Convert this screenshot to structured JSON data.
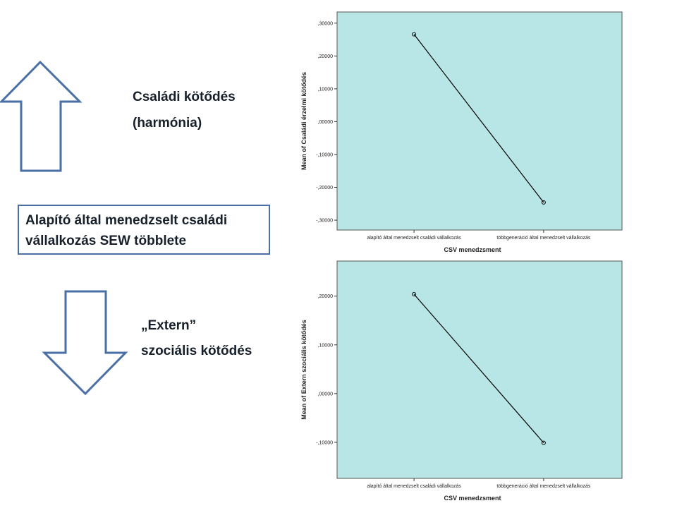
{
  "slide": {
    "top_label": [
      "Családi kötődés",
      "(harmónia)"
    ],
    "box_text": [
      "Alapító által menedzselt családi",
      "vállalkozás SEW többlete"
    ],
    "bottom_label": [
      "„Extern”",
      "szociális kötődés"
    ]
  },
  "chart_data": [
    {
      "type": "line",
      "x_label": "CSV menedzsment",
      "y_label": "Mean of Családi érzelmi kötődés",
      "categories": [
        "alapító által menedzselt családi vállalkozás",
        "többgeneráció által menedzselt vállalkozás"
      ],
      "values": [
        0.266,
        -0.246
      ],
      "color": "#000000",
      "background": "#b8e6e6",
      "ylim": [
        -0.33,
        0.334
      ],
      "yticks": [
        {
          "value": -0.3,
          "label": "-,30000"
        },
        {
          "value": -0.2,
          "label": "-,20000"
        },
        {
          "value": -0.1,
          "label": "-,10000"
        },
        {
          "value": 0,
          "label": ",00000"
        },
        {
          "value": 0.1,
          "label": ",10000"
        },
        {
          "value": 0.2,
          "label": ",20000"
        },
        {
          "value": 0.3,
          "label": ",30000"
        }
      ]
    },
    {
      "type": "line",
      "x_label": "CSV menedzsment",
      "y_label": "Mean of Extern szociális kötődés",
      "categories": [
        "alapító által menedzselt családi vállalkozás",
        "többgeneráció által menedzselt vállalkozás"
      ],
      "values": [
        0.204,
        -0.101
      ],
      "color": "#000000",
      "background": "#b8e6e6",
      "ylim": [
        -0.174,
        0.272
      ],
      "yticks": [
        {
          "value": -0.1,
          "label": "-,10000"
        },
        {
          "value": 0,
          "label": ",00000"
        },
        {
          "value": 0.1,
          "label": ",10000"
        },
        {
          "value": 0.2,
          "label": ",20000"
        }
      ]
    }
  ]
}
